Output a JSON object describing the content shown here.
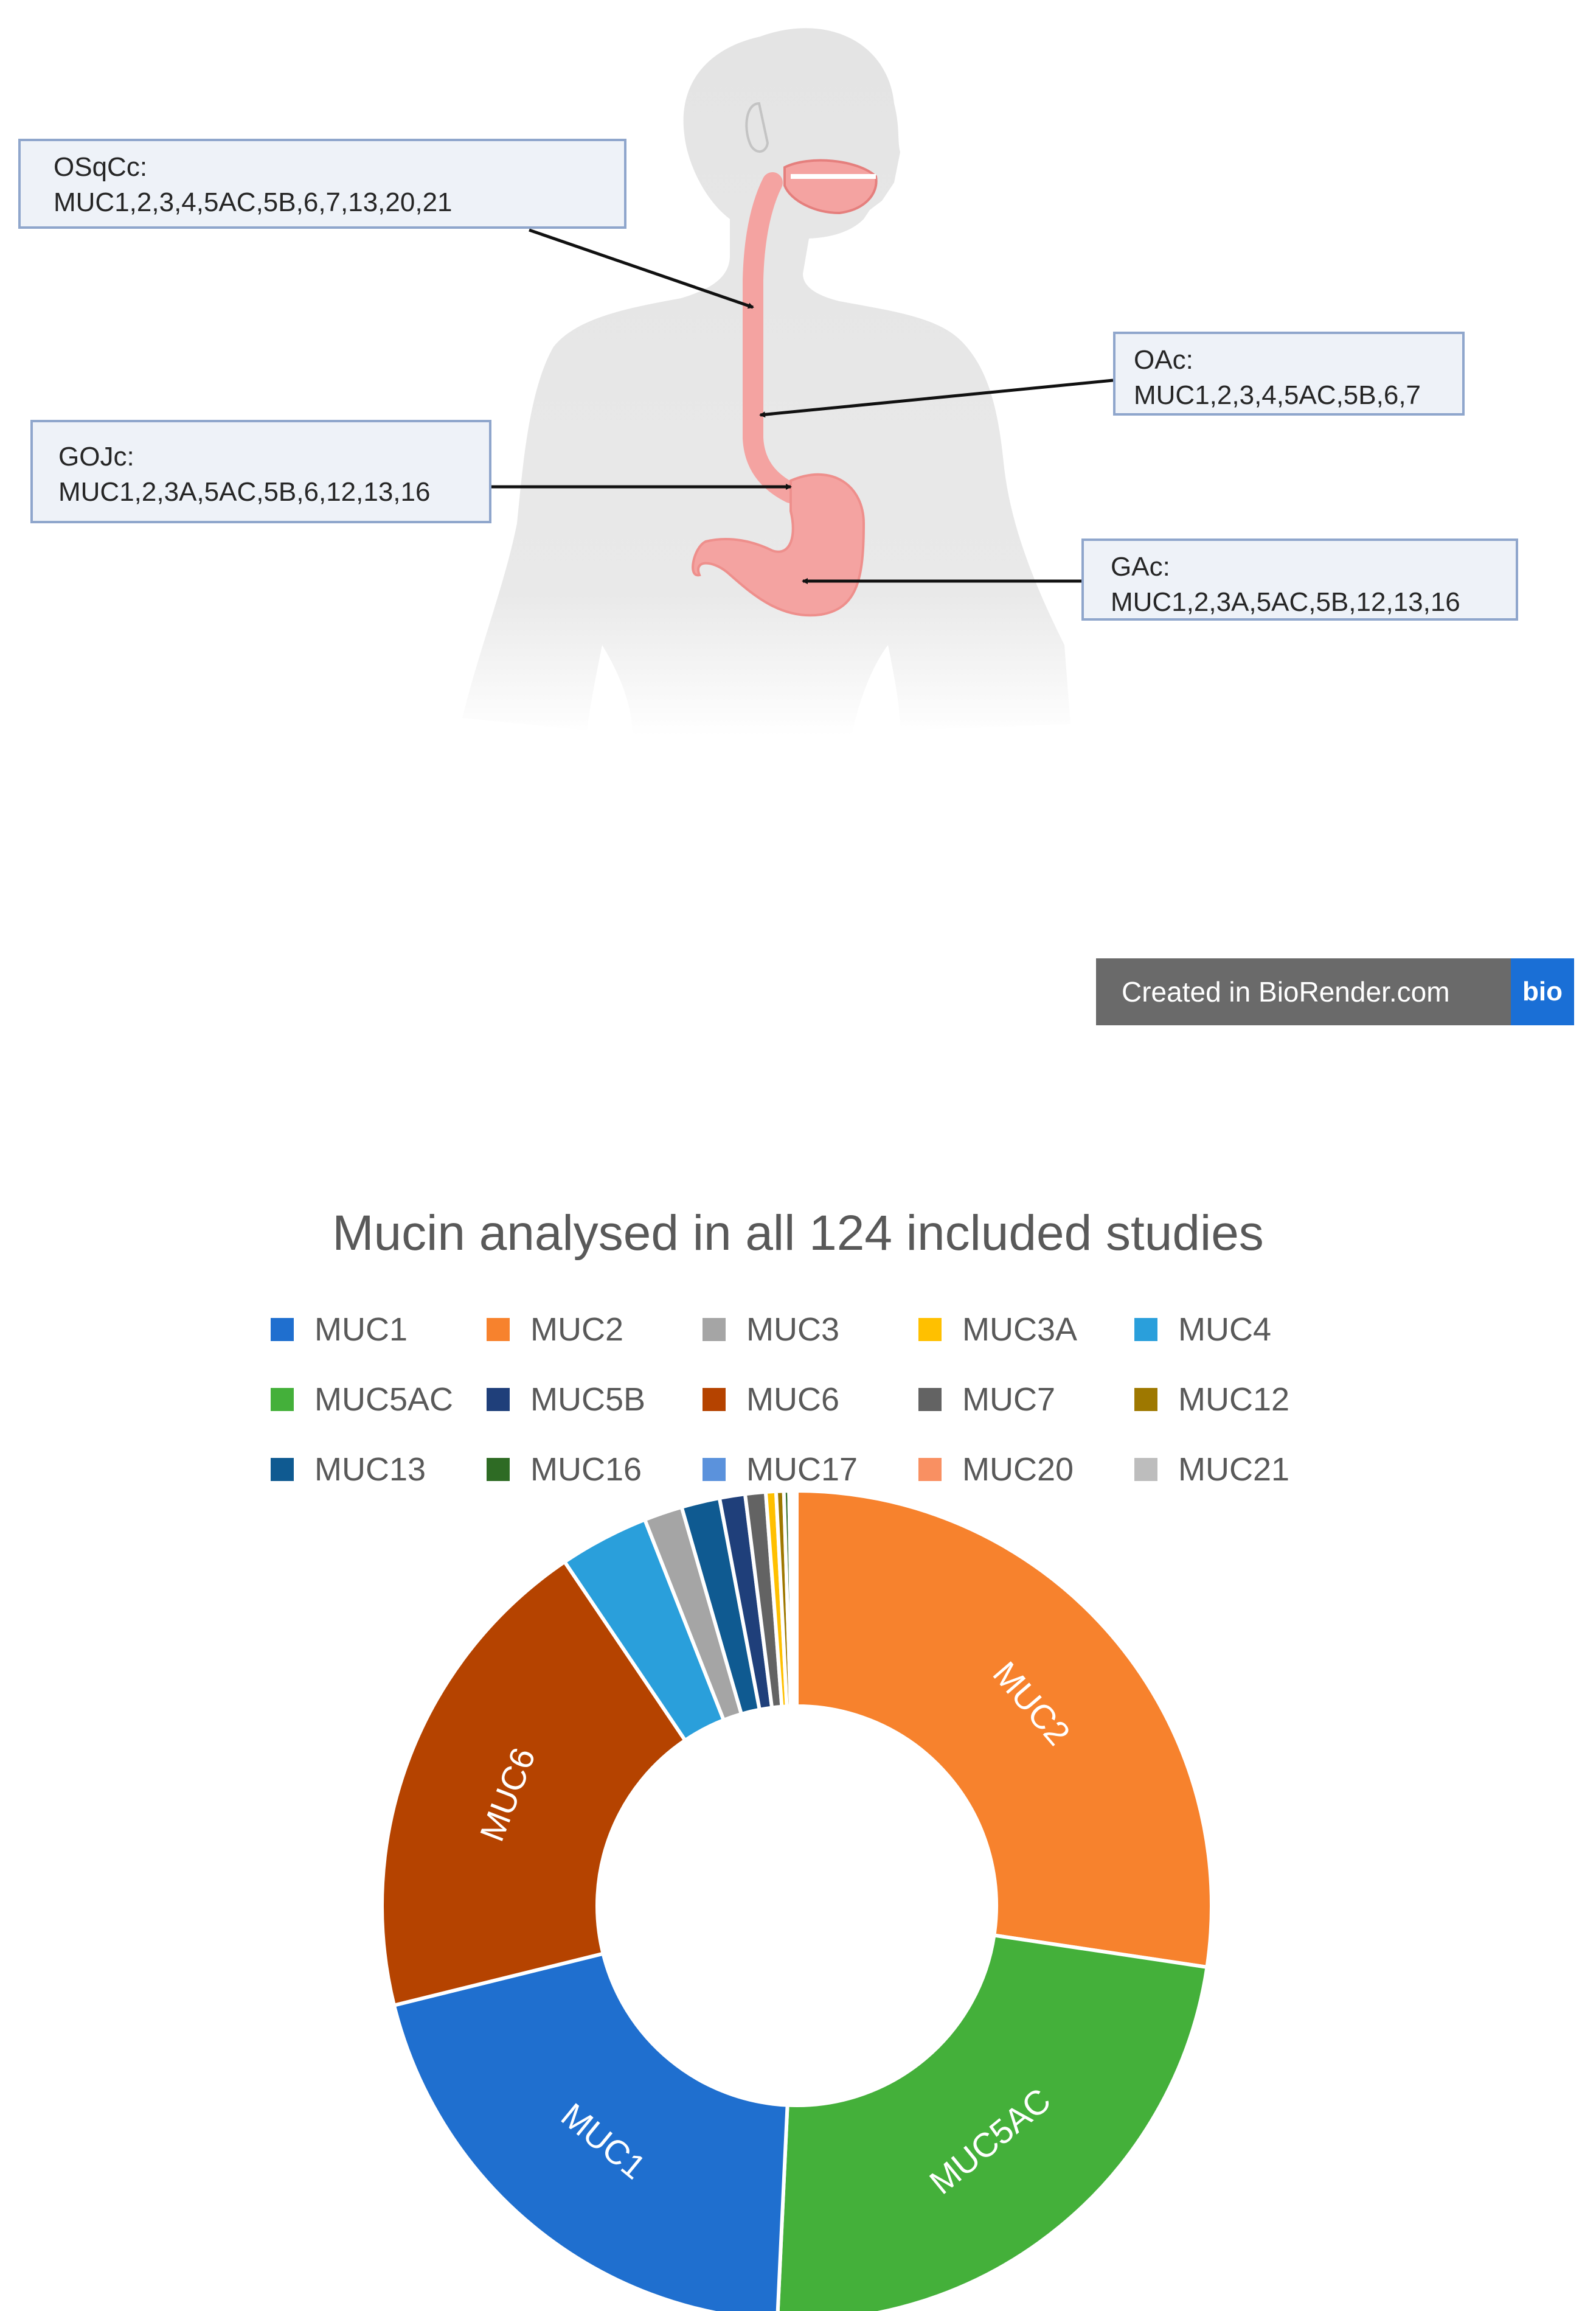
{
  "figure_top": {
    "callouts": [
      {
        "id": "osqcc",
        "title": "OSqCc:",
        "mucins": "MUC1,2,3,4,5AC,5B,6,7,13,20,21"
      },
      {
        "id": "oac",
        "title": "OAc:",
        "mucins": "MUC1,2,3,4,5AC,5B,6,7"
      },
      {
        "id": "gojc",
        "title": "GOJc:",
        "mucins": "MUC1,2,3A,5AC,5B,6,12,13,16"
      },
      {
        "id": "gac",
        "title": "GAc:",
        "mucins": "MUC1,2,3A,5AC,5B,12,13,16"
      }
    ],
    "badge": {
      "text": "Created in BioRender.com",
      "mark": "bio"
    },
    "colors": {
      "skin": "#e6e6e6",
      "organ": "#f4a3a1",
      "callout_border": "#8fa6cc",
      "callout_fill": "#eef2f8"
    }
  },
  "chart_data": {
    "type": "pie",
    "donut": true,
    "title": "Mucin analysed in all 124 included studies",
    "legend_position": "top",
    "categories": [
      "MUC1",
      "MUC2",
      "MUC3",
      "MUC3A",
      "MUC4",
      "MUC5AC",
      "MUC5B",
      "MUC6",
      "MUC7",
      "MUC12",
      "MUC13",
      "MUC16",
      "MUC17",
      "MUC20",
      "MUC21"
    ],
    "values": [
      20.5,
      27.5,
      1.5,
      0.4,
      3.5,
      23.5,
      1.0,
      19.5,
      0.8,
      0.3,
      1.5,
      0.2,
      0.1,
      0.1,
      0.1
    ],
    "colors": [
      "#1f6fcf",
      "#f7822d",
      "#a5a5a5",
      "#ffc000",
      "#2a9fdb",
      "#44b03a",
      "#1f3f7a",
      "#b54300",
      "#636363",
      "#9e7800",
      "#0f5a91",
      "#2e6b24",
      "#5b92dc",
      "#f99062",
      "#bdbdbd"
    ],
    "slice_labels": [
      "MUC1",
      "MUC2",
      "",
      "",
      "",
      "MUC5AC",
      "",
      "MUC6",
      "",
      "",
      "",
      "",
      "",
      "",
      ""
    ]
  }
}
